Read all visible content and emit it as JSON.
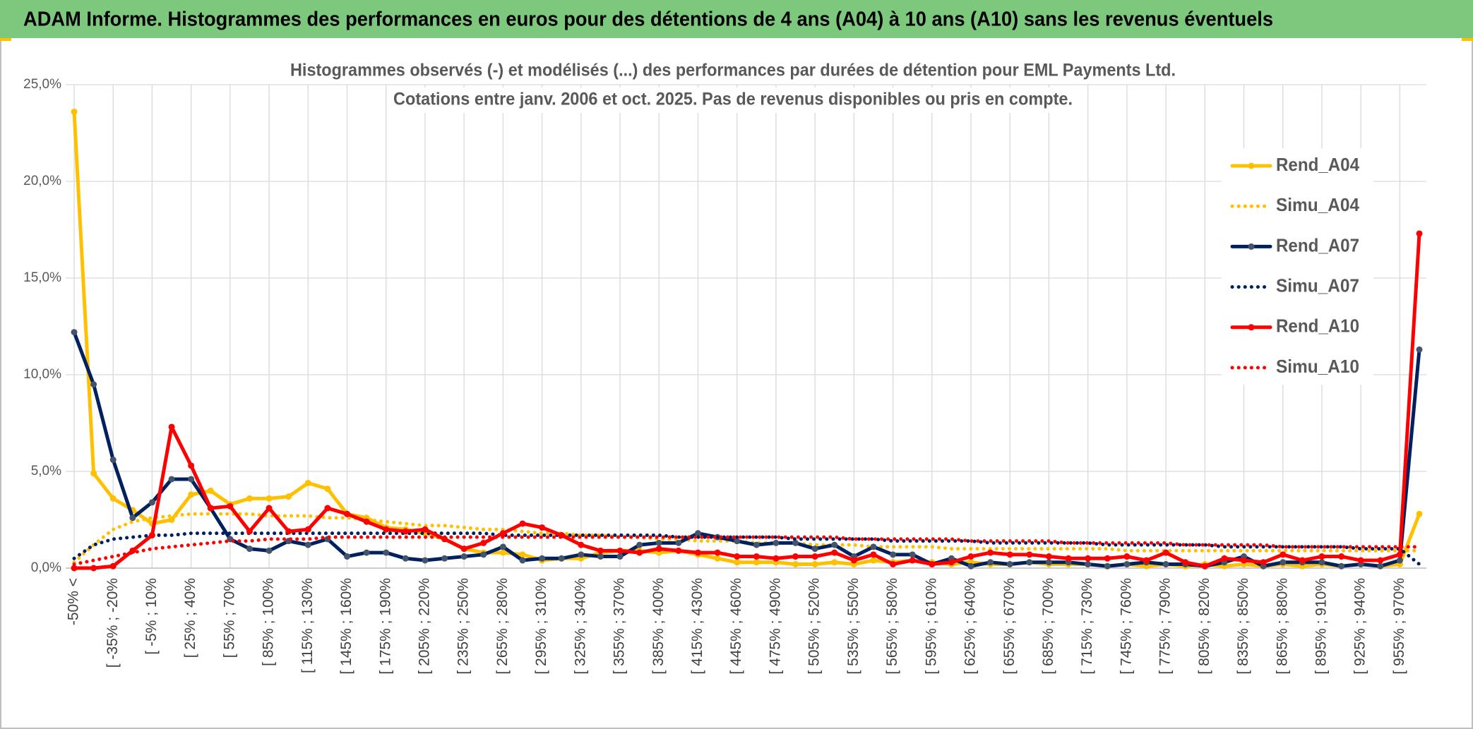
{
  "header": {
    "title": "ADAM Informe. Histogrammes des performances en euros pour des détentions de 4 ans (A04) à 10 ans (A10) sans les revenus éventuels"
  },
  "chart_data": {
    "type": "line",
    "title": [
      "Histogrammes observés (-) et modélisés (...) des performances par durées de détention pour EML Payments Ltd.",
      "Cotations entre janv. 2006 et oct. 2025. Pas de revenus disponibles ou pris en compte."
    ],
    "categories": [
      "-50% <",
      null,
      "[ -35% ; -20%",
      null,
      "[ -5% ; 10%",
      null,
      "[ 25% ; 40%",
      null,
      "[ 55% ; 70%",
      null,
      "[ 85% ; 100%",
      null,
      "[ 115% ; 130%",
      null,
      "[ 145% ; 160%",
      null,
      "[ 175% ; 190%",
      null,
      "[ 205% ; 220%",
      null,
      "[ 235% ; 250%",
      null,
      "[ 265% ; 280%",
      null,
      "[ 295% ; 310%",
      null,
      "[ 325% ; 340%",
      null,
      "[ 355% ; 370%",
      null,
      "[ 385% ; 400%",
      null,
      "[ 415% ; 430%",
      null,
      "[ 445% ; 460%",
      null,
      "[ 475% ; 490%",
      null,
      "[ 505% ; 520%",
      null,
      "[ 535% ; 550%",
      null,
      "[ 565% ; 580%",
      null,
      "[ 595% ; 610%",
      null,
      "[ 625% ; 640%",
      null,
      "[ 655% ; 670%",
      null,
      "[ 685% ; 700%",
      null,
      "[ 715% ; 730%",
      null,
      "[ 745% ; 760%",
      null,
      "[ 775% ; 790%",
      null,
      "[ 805% ; 820%",
      null,
      "[ 835% ; 850%",
      null,
      "[ 865% ; 880%",
      null,
      "[ 895% ; 910%",
      null,
      "[ 925% ; 940%",
      null,
      "[ 955% ; 970%",
      null
    ],
    "series": [
      {
        "name": "Rend_A04",
        "color": "#FFC000",
        "line_style": "solid",
        "markers": true,
        "values": [
          23.6,
          4.9,
          3.6,
          3.0,
          2.3,
          2.5,
          3.8,
          4.0,
          3.3,
          3.6,
          3.6,
          3.7,
          4.4,
          4.1,
          2.8,
          2.6,
          2.1,
          2.0,
          1.8,
          1.5,
          1.0,
          0.8,
          0.8,
          0.7,
          0.4,
          0.5,
          0.5,
          0.8,
          0.9,
          0.9,
          0.8,
          0.9,
          0.7,
          0.5,
          0.3,
          0.3,
          0.3,
          0.2,
          0.2,
          0.3,
          0.2,
          0.4,
          0.3,
          0.4,
          0.3,
          0.2,
          0.3,
          0.2,
          0.2,
          0.3,
          0.2,
          0.2,
          0.2,
          0.1,
          0.2,
          0.1,
          0.2,
          0.1,
          0.2,
          0.1,
          0.2,
          0.1,
          0.2,
          0.1,
          0.2,
          0.1,
          0.2,
          0.1,
          0.2,
          2.8
        ]
      },
      {
        "name": "Simu_A04",
        "color": "#FFC000",
        "line_style": "dotted",
        "markers": false,
        "values": [
          0.3,
          1.2,
          2.0,
          2.4,
          2.6,
          2.7,
          2.8,
          2.8,
          2.8,
          2.8,
          2.7,
          2.7,
          2.7,
          2.6,
          2.6,
          2.5,
          2.4,
          2.3,
          2.2,
          2.2,
          2.1,
          2.0,
          2.0,
          1.9,
          1.8,
          1.8,
          1.7,
          1.7,
          1.6,
          1.6,
          1.5,
          1.5,
          1.4,
          1.4,
          1.4,
          1.3,
          1.3,
          1.3,
          1.2,
          1.2,
          1.2,
          1.1,
          1.1,
          1.1,
          1.1,
          1.0,
          1.0,
          1.0,
          1.0,
          1.0,
          1.0,
          1.0,
          1.0,
          1.0,
          0.9,
          0.9,
          0.9,
          0.9,
          0.9,
          0.9,
          0.9,
          0.9,
          0.9,
          0.9,
          0.9,
          0.9,
          0.9,
          0.9,
          0.9,
          0.9
        ]
      },
      {
        "name": "Rend_A07",
        "color": "#002060",
        "line_style": "solid",
        "markers": true,
        "values": [
          12.2,
          9.5,
          5.6,
          2.6,
          3.4,
          4.6,
          4.6,
          3.1,
          1.5,
          1.0,
          0.9,
          1.4,
          1.2,
          1.5,
          0.6,
          0.8,
          0.8,
          0.5,
          0.4,
          0.5,
          0.6,
          0.7,
          1.1,
          0.4,
          0.5,
          0.5,
          0.7,
          0.6,
          0.6,
          1.2,
          1.3,
          1.3,
          1.8,
          1.6,
          1.4,
          1.2,
          1.3,
          1.3,
          1.0,
          1.2,
          0.6,
          1.1,
          0.7,
          0.7,
          0.2,
          0.5,
          0.1,
          0.3,
          0.2,
          0.3,
          0.3,
          0.3,
          0.2,
          0.1,
          0.2,
          0.3,
          0.2,
          0.2,
          0.1,
          0.3,
          0.6,
          0.1,
          0.3,
          0.3,
          0.3,
          0.1,
          0.2,
          0.1,
          0.4,
          11.3
        ]
      },
      {
        "name": "Simu_A07",
        "color": "#002060",
        "line_style": "dotted",
        "markers": false,
        "values": [
          0.5,
          1.2,
          1.5,
          1.6,
          1.7,
          1.7,
          1.8,
          1.8,
          1.8,
          1.8,
          1.8,
          1.8,
          1.8,
          1.8,
          1.8,
          1.8,
          1.8,
          1.8,
          1.8,
          1.8,
          1.8,
          1.8,
          1.7,
          1.7,
          1.7,
          1.7,
          1.7,
          1.7,
          1.7,
          1.7,
          1.7,
          1.6,
          1.6,
          1.6,
          1.6,
          1.6,
          1.6,
          1.5,
          1.5,
          1.5,
          1.5,
          1.5,
          1.4,
          1.4,
          1.4,
          1.4,
          1.4,
          1.3,
          1.3,
          1.3,
          1.3,
          1.3,
          1.3,
          1.2,
          1.2,
          1.2,
          1.2,
          1.2,
          1.2,
          1.1,
          1.1,
          1.1,
          1.1,
          1.1,
          1.1,
          1.1,
          1.0,
          1.0,
          1.0,
          0.2
        ]
      },
      {
        "name": "Rend_A10",
        "color": "#FF0000",
        "line_style": "solid",
        "markers": true,
        "values": [
          0.0,
          0.0,
          0.1,
          0.9,
          1.7,
          7.3,
          5.3,
          3.1,
          3.2,
          1.9,
          3.1,
          1.9,
          2.0,
          3.1,
          2.8,
          2.4,
          2.0,
          1.9,
          2.0,
          1.5,
          1.0,
          1.3,
          1.8,
          2.3,
          2.1,
          1.7,
          1.2,
          0.9,
          0.9,
          0.8,
          1.0,
          0.9,
          0.8,
          0.8,
          0.6,
          0.6,
          0.5,
          0.6,
          0.6,
          0.8,
          0.4,
          0.7,
          0.2,
          0.4,
          0.2,
          0.3,
          0.6,
          0.8,
          0.7,
          0.7,
          0.6,
          0.5,
          0.5,
          0.5,
          0.6,
          0.4,
          0.8,
          0.3,
          0.1,
          0.5,
          0.4,
          0.3,
          0.7,
          0.4,
          0.6,
          0.6,
          0.4,
          0.4,
          0.7,
          17.3
        ]
      },
      {
        "name": "Simu_A10",
        "color": "#FF0000",
        "line_style": "dotted",
        "markers": false,
        "values": [
          0.2,
          0.4,
          0.6,
          0.8,
          1.0,
          1.1,
          1.2,
          1.3,
          1.4,
          1.4,
          1.5,
          1.5,
          1.5,
          1.6,
          1.6,
          1.6,
          1.6,
          1.6,
          1.6,
          1.6,
          1.6,
          1.6,
          1.6,
          1.6,
          1.6,
          1.6,
          1.6,
          1.6,
          1.6,
          1.6,
          1.6,
          1.6,
          1.6,
          1.6,
          1.6,
          1.6,
          1.6,
          1.6,
          1.6,
          1.6,
          1.5,
          1.5,
          1.5,
          1.5,
          1.5,
          1.5,
          1.4,
          1.4,
          1.4,
          1.4,
          1.4,
          1.3,
          1.3,
          1.3,
          1.3,
          1.3,
          1.3,
          1.2,
          1.2,
          1.2,
          1.2,
          1.2,
          1.1,
          1.1,
          1.1,
          1.1,
          1.1,
          1.1,
          1.1,
          1.1
        ]
      }
    ],
    "ylim": [
      0,
      25
    ],
    "yticks": [
      {
        "value": 0,
        "label": "0,0%"
      },
      {
        "value": 5,
        "label": "5,0%"
      },
      {
        "value": 10,
        "label": "10,0%"
      },
      {
        "value": 15,
        "label": "15,0%"
      },
      {
        "value": 20,
        "label": "20,0%"
      },
      {
        "value": 25,
        "label": "25,0%"
      }
    ],
    "grid": true,
    "legend": "right"
  }
}
